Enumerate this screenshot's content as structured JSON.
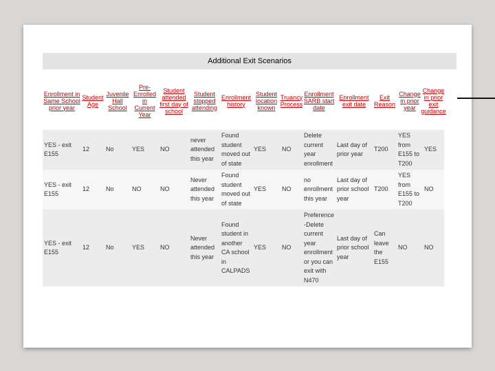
{
  "title": "Additional Exit Scenarios",
  "headers": [
    "Enrollment in Same School prior year",
    "Student Age",
    "Juvenile Hall School",
    "Pre-Enrolled in Current Year",
    "Student attended first day of school",
    "Student stopped attending",
    "Enrollment history",
    "Student location known",
    "Truancy Process",
    "Enrollment SARB start date",
    "Enrollment exit date",
    "Exit Reason",
    "Change in prior year",
    "Change in prior exit guidance"
  ],
  "rows": [
    [
      "YES - exit E155",
      "12",
      "No",
      "YES",
      "NO",
      "never attended this year",
      "Found student moved out of state",
      "YES",
      "NO",
      "Delete current year enrollment",
      "Last day of prior year",
      "T200",
      "YES from E155 to T200",
      "YES"
    ],
    [
      "YES - exit E155",
      "12",
      "No",
      "NO",
      "NO",
      "Never attended this year",
      "Found student moved out of state",
      "YES",
      "NO",
      "no enrollment this year",
      "Last day of prior school year",
      "T200",
      "YES from E155 to T200",
      "NO"
    ],
    [
      "YES - exit E155",
      "12",
      "No",
      "YES",
      "NO",
      "Never attended this year",
      "Found student in another CA school in CALPADS",
      "YES",
      "NO",
      "Preference -Delete current year enrollment or you can exit with N470",
      "Last day of prior school year",
      "Can leave the E155",
      "NO",
      "NO"
    ]
  ]
}
